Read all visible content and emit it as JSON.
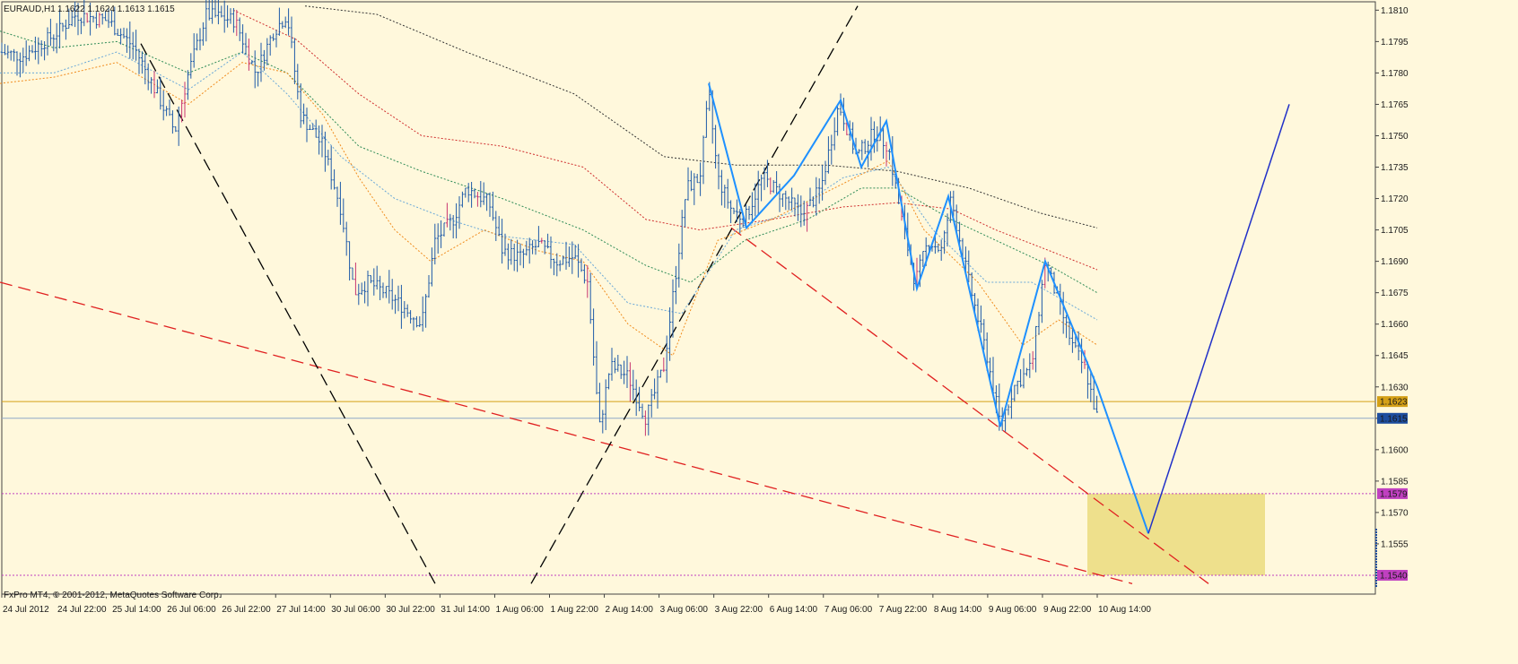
{
  "header": {
    "symbol": "EURAUD,H1",
    "ohlc": "1.1622 1.1624 1.1613 1.1615"
  },
  "footer": {
    "copyright": "FxPro MT4, © 2001-2012, MetaQuotes Software Corp."
  },
  "colors": {
    "background": "#FFF8DC",
    "bar": "#1E5AA8",
    "bar_down_accent": "#C8366F",
    "zigzag": "#1E90FF",
    "projection": "#2030C8",
    "red_trend": "#E02020",
    "black_trend": "#000000",
    "box_fill": "#EEE08C",
    "gold_line": "#D4A017",
    "bid_line": "#8FA8C8",
    "magenta_level": "#C040C0"
  },
  "chart_data": {
    "type": "line",
    "symbol": "EURAUD",
    "timeframe": "H1",
    "y_range": [
      1.1531,
      1.1814
    ],
    "price_ticks": [
      "1.1810",
      "1.1795",
      "1.1780",
      "1.1765",
      "1.1750",
      "1.1735",
      "1.1720",
      "1.1705",
      "1.1690",
      "1.1675",
      "1.1660",
      "1.1645",
      "1.1630",
      "1.1615",
      "1.1600",
      "1.1585",
      "1.1570",
      "1.1555",
      "1.1540"
    ],
    "time_labels": [
      "24 Jul 2012",
      "24 Jul 22:00",
      "25 Jul 14:00",
      "26 Jul 06:00",
      "26 Jul 22:00",
      "27 Jul 14:00",
      "30 Jul 06:00",
      "30 Jul 22:00",
      "31 Jul 14:00",
      "1 Aug 06:00",
      "1 Aug 22:00",
      "2 Aug 14:00",
      "3 Aug 06:00",
      "3 Aug 22:00",
      "6 Aug 14:00",
      "7 Aug 06:00",
      "7 Aug 22:00",
      "8 Aug 14:00",
      "9 Aug 06:00",
      "9 Aug 22:00",
      "10 Aug 14:00"
    ],
    "current_price": "1.1615",
    "highlighted_levels": [
      {
        "name": "gold-level",
        "value": "1.1623"
      },
      {
        "name": "upper-box-level",
        "value": "1.1579"
      },
      {
        "name": "lower-box-level",
        "value": "1.1540"
      }
    ],
    "price_path": [
      [
        0,
        1.179
      ],
      [
        25,
        1.1788
      ],
      [
        60,
        1.1798
      ],
      [
        85,
        1.1808
      ],
      [
        120,
        1.1805
      ],
      [
        150,
        1.1792
      ],
      [
        175,
        1.177
      ],
      [
        195,
        1.1752
      ],
      [
        210,
        1.178
      ],
      [
        230,
        1.1808
      ],
      [
        262,
        1.1805
      ],
      [
        285,
        1.178
      ],
      [
        305,
        1.18
      ],
      [
        320,
        1.1808
      ],
      [
        335,
        1.176
      ],
      [
        360,
        1.1745
      ],
      [
        380,
        1.1715
      ],
      [
        395,
        1.1675
      ],
      [
        410,
        1.168
      ],
      [
        430,
        1.1675
      ],
      [
        450,
        1.1668
      ],
      [
        470,
        1.166
      ],
      [
        485,
        1.17
      ],
      [
        505,
        1.171
      ],
      [
        520,
        1.1725
      ],
      [
        545,
        1.1718
      ],
      [
        560,
        1.1695
      ],
      [
        580,
        1.1692
      ],
      [
        600,
        1.1698
      ],
      [
        620,
        1.169
      ],
      [
        640,
        1.1692
      ],
      [
        655,
        1.168
      ],
      [
        668,
        1.161
      ],
      [
        680,
        1.164
      ],
      [
        700,
        1.1635
      ],
      [
        720,
        1.1615
      ],
      [
        740,
        1.164
      ],
      [
        755,
        1.169
      ],
      [
        765,
        1.1725
      ],
      [
        780,
        1.173
      ],
      [
        790,
        1.177
      ],
      [
        800,
        1.173
      ],
      [
        815,
        1.1715
      ],
      [
        830,
        1.171
      ],
      [
        850,
        1.173
      ],
      [
        875,
        1.172
      ],
      [
        895,
        1.1712
      ],
      [
        915,
        1.1725
      ],
      [
        935,
        1.1765
      ],
      [
        955,
        1.174
      ],
      [
        975,
        1.1752
      ],
      [
        990,
        1.1745
      ],
      [
        1005,
        1.171
      ],
      [
        1020,
        1.168
      ],
      [
        1035,
        1.17
      ],
      [
        1050,
        1.1695
      ],
      [
        1060,
        1.172
      ],
      [
        1080,
        1.168
      ],
      [
        1100,
        1.1645
      ],
      [
        1115,
        1.1612
      ],
      [
        1130,
        1.163
      ],
      [
        1150,
        1.164
      ],
      [
        1165,
        1.169
      ],
      [
        1180,
        1.167
      ],
      [
        1195,
        1.165
      ],
      [
        1210,
        1.1638
      ],
      [
        1223,
        1.1615
      ]
    ],
    "zigzag_points": [
      [
        790,
        1.1775
      ],
      [
        832,
        1.1706
      ],
      [
        885,
        1.1731
      ],
      [
        937,
        1.1767
      ],
      [
        960,
        1.1735
      ],
      [
        988,
        1.1757
      ],
      [
        1022,
        1.1677
      ],
      [
        1057,
        1.1721
      ],
      [
        1115,
        1.1611
      ],
      [
        1165,
        1.169
      ],
      [
        1223,
        1.163
      ],
      [
        1280,
        1.156
      ]
    ],
    "projection_points": [
      [
        1280,
        1.156
      ],
      [
        1437,
        1.1765
      ]
    ],
    "moving_averages": [
      {
        "color": "#333333",
        "points": [
          [
            340,
            1.1812
          ],
          [
            420,
            1.1808
          ],
          [
            520,
            1.179
          ],
          [
            640,
            1.177
          ],
          [
            740,
            1.174
          ],
          [
            820,
            1.1736
          ],
          [
            920,
            1.1736
          ],
          [
            1000,
            1.1733
          ],
          [
            1080,
            1.1725
          ],
          [
            1160,
            1.1713
          ],
          [
            1223,
            1.1706
          ]
        ]
      },
      {
        "color": "#D03030",
        "points": [
          [
            260,
            1.181
          ],
          [
            330,
            1.1796
          ],
          [
            400,
            1.177
          ],
          [
            470,
            1.175
          ],
          [
            560,
            1.1745
          ],
          [
            650,
            1.1735
          ],
          [
            720,
            1.171
          ],
          [
            780,
            1.1705
          ],
          [
            860,
            1.171
          ],
          [
            940,
            1.1716
          ],
          [
            1000,
            1.1718
          ],
          [
            1060,
            1.1715
          ],
          [
            1110,
            1.1705
          ],
          [
            1170,
            1.1695
          ],
          [
            1223,
            1.1686
          ]
        ]
      },
      {
        "color": "#2E8B57",
        "points": [
          [
            0,
            1.18
          ],
          [
            60,
            1.1792
          ],
          [
            130,
            1.1795
          ],
          [
            210,
            1.178
          ],
          [
            270,
            1.179
          ],
          [
            320,
            1.178
          ],
          [
            400,
            1.1745
          ],
          [
            470,
            1.1733
          ],
          [
            560,
            1.172
          ],
          [
            650,
            1.1705
          ],
          [
            720,
            1.1688
          ],
          [
            770,
            1.168
          ],
          [
            830,
            1.17
          ],
          [
            900,
            1.171
          ],
          [
            960,
            1.1725
          ],
          [
            1000,
            1.1725
          ],
          [
            1060,
            1.171
          ],
          [
            1120,
            1.1698
          ],
          [
            1170,
            1.1688
          ],
          [
            1223,
            1.1675
          ]
        ]
      },
      {
        "color": "#6AA8D8",
        "points": [
          [
            0,
            1.178
          ],
          [
            60,
            1.178
          ],
          [
            130,
            1.179
          ],
          [
            210,
            1.1772
          ],
          [
            270,
            1.179
          ],
          [
            320,
            1.177
          ],
          [
            380,
            1.174
          ],
          [
            440,
            1.172
          ],
          [
            500,
            1.171
          ],
          [
            560,
            1.1702
          ],
          [
            640,
            1.1698
          ],
          [
            700,
            1.167
          ],
          [
            760,
            1.1665
          ],
          [
            820,
            1.1705
          ],
          [
            880,
            1.1713
          ],
          [
            940,
            1.173
          ],
          [
            990,
            1.1735
          ],
          [
            1040,
            1.1705
          ],
          [
            1100,
            1.168
          ],
          [
            1150,
            1.168
          ],
          [
            1223,
            1.1662
          ]
        ]
      },
      {
        "color": "#F08C1E",
        "points": [
          [
            0,
            1.1775
          ],
          [
            60,
            1.1778
          ],
          [
            130,
            1.1785
          ],
          [
            210,
            1.1765
          ],
          [
            270,
            1.1785
          ],
          [
            320,
            1.178
          ],
          [
            360,
            1.176
          ],
          [
            400,
            1.173
          ],
          [
            440,
            1.1705
          ],
          [
            480,
            1.169
          ],
          [
            540,
            1.1705
          ],
          [
            600,
            1.1695
          ],
          [
            650,
            1.169
          ],
          [
            700,
            1.166
          ],
          [
            750,
            1.1645
          ],
          [
            800,
            1.17
          ],
          [
            860,
            1.171
          ],
          [
            930,
            1.1725
          ],
          [
            990,
            1.1738
          ],
          [
            1030,
            1.1705
          ],
          [
            1090,
            1.168
          ],
          [
            1140,
            1.165
          ],
          [
            1180,
            1.1662
          ],
          [
            1223,
            1.165
          ]
        ]
      }
    ],
    "trend_lines": [
      {
        "color": "#E02020",
        "style": "dash",
        "from": [
          0,
          1.168
        ],
        "to": [
          1262,
          1.1536
        ]
      },
      {
        "color": "#E02020",
        "style": "dash",
        "from": [
          815,
          1.1706
        ],
        "to": [
          1347,
          1.1536
        ]
      },
      {
        "color": "#000000",
        "style": "dash",
        "from": [
          157,
          1.1794
        ],
        "to": [
          485,
          1.1536
        ]
      },
      {
        "color": "#000000",
        "style": "dash",
        "from": [
          592,
          1.1536
        ],
        "to": [
          956,
          1.1812
        ]
      }
    ],
    "box": {
      "x_from": 1212,
      "x_to": 1410,
      "top": 1.1579,
      "bottom": 1.154
    }
  }
}
